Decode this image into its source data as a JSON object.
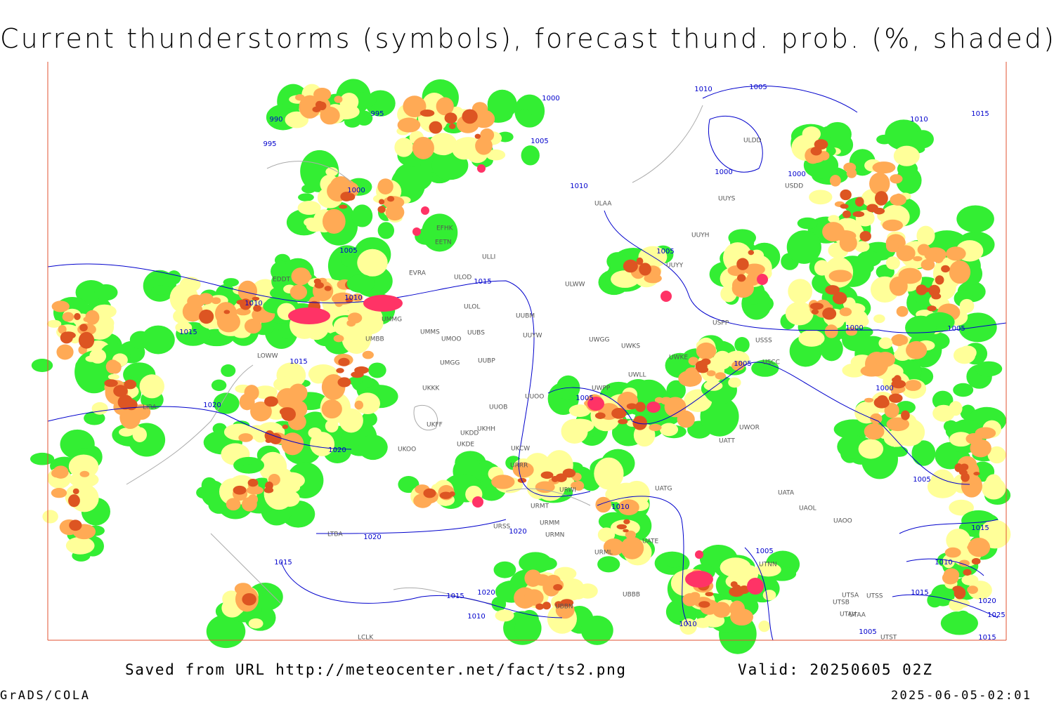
{
  "header": {
    "title": "Current thunderstorms (symbols), forecast thund. prob. (%, shaded)"
  },
  "footer": {
    "saved_from": "Saved from URL http://meteocenter.net/fact/ts2.png",
    "valid": "Valid: 20250605 02Z",
    "software": "GrADS/COLA",
    "timestamp": "2025-06-05-02:01"
  },
  "isobar_labels": [
    "990",
    "995",
    "995",
    "1000",
    "1005",
    "1000",
    "1010",
    "1005",
    "1000",
    "1000",
    "1010",
    "1015",
    "1010",
    "1005",
    "1015",
    "1010",
    "1010",
    "1015",
    "1015",
    "1005",
    "1000",
    "1005",
    "1005",
    "1000",
    "1020",
    "1020",
    "1005",
    "1010",
    "1005",
    "1020",
    "1020",
    "1015",
    "1015",
    "1010",
    "1005",
    "1020",
    "1015",
    "1010",
    "1015",
    "1020",
    "1025",
    "1010",
    "1005",
    "1015"
  ],
  "station_labels": [
    "ULAA",
    "UUYS",
    "UUYH",
    "UUYY",
    "ULWW",
    "ULOD",
    "ULOL",
    "UUBM",
    "UMMS",
    "UMOO",
    "UUBS",
    "UUYW",
    "UWGG",
    "UWKS",
    "USPP",
    "USSS",
    "USCC",
    "UMGG",
    "UUBP",
    "UWKE",
    "UWLL",
    "UKKK",
    "UUOO",
    "UWPP",
    "UUOB",
    "UKHH",
    "UKDD",
    "UKDE",
    "UKCW",
    "UKOO",
    "UKFF",
    "UWOR",
    "UATT",
    "URRR",
    "URWI",
    "UATG",
    "UATA",
    "UAOL",
    "UAOO",
    "URMT",
    "URMM",
    "URMN",
    "UATE",
    "URML",
    "UTNN",
    "ULDD",
    "USDD",
    "UMBB",
    "UMMG",
    "EVRA",
    "EFHK",
    "EETN",
    "ULLI",
    "EDDT",
    "LOWW",
    "LIRA",
    "LTBA",
    "URSS",
    "UBBN",
    "UBBB",
    "UTSA",
    "UTSB",
    "UTSS",
    "UTAV",
    "UTST",
    "UTAA",
    "LCLK"
  ]
}
